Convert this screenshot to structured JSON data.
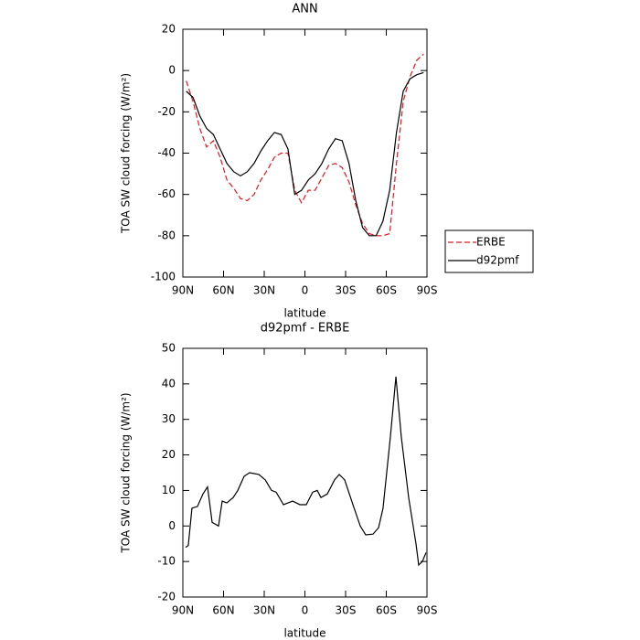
{
  "chart_data": [
    {
      "type": "line",
      "title": "ANN",
      "x_label": "latitude",
      "y_label": "TOA SW cloud forcing (W/m²)",
      "x": [
        87.5,
        82.5,
        77.5,
        72.5,
        67.5,
        62.5,
        57.5,
        52.5,
        47.5,
        42.5,
        37.5,
        32.5,
        27.5,
        22.5,
        17.5,
        12.5,
        7.5,
        2.5,
        -2.5,
        -7.5,
        -12.5,
        -17.5,
        -22.5,
        -27.5,
        -32.5,
        -37.5,
        -42.5,
        -47.5,
        -52.5,
        -57.5,
        -62.5,
        -67.5,
        -72.5,
        -77.5,
        -82.5,
        -87.5
      ],
      "series": [
        {
          "name": "ERBE",
          "color": "#e8141e",
          "line_style": "dashed",
          "values": [
            -5,
            -15,
            -28,
            -37,
            -34,
            -42,
            -53,
            -57,
            -62,
            -63,
            -60,
            -53,
            -48,
            -42,
            -40,
            -40,
            -58,
            -64,
            -58,
            -58,
            -52,
            -46,
            -45,
            -47,
            -54,
            -65,
            -74,
            -79,
            -80,
            -80,
            -79,
            -45,
            -15,
            -3,
            5,
            8
          ]
        },
        {
          "name": "d92pmf",
          "color": "#000000",
          "line_style": "solid",
          "values": [
            -10,
            -13,
            -22,
            -28,
            -31,
            -38,
            -45,
            -49,
            -51,
            -49,
            -45,
            -39,
            -34,
            -30,
            -31,
            -38,
            -60,
            -58,
            -53,
            -50,
            -45,
            -38,
            -33,
            -34,
            -45,
            -63,
            -76,
            -80,
            -80,
            -73,
            -58,
            -30,
            -10,
            -4,
            -2,
            -1
          ]
        }
      ],
      "xlim": [
        90,
        -90
      ],
      "xticks": [
        {
          "value": 90,
          "label": "90N"
        },
        {
          "value": 60,
          "label": "60N"
        },
        {
          "value": 30,
          "label": "30N"
        },
        0,
        {
          "value": -30,
          "label": "30S"
        },
        {
          "value": -60,
          "label": "60S"
        },
        {
          "value": -90,
          "label": "90S"
        }
      ],
      "ylim": [
        -100,
        20
      ],
      "yticks": [
        -100,
        -80,
        -60,
        -40,
        -20,
        0,
        20
      ],
      "legend": "right"
    },
    {
      "type": "line",
      "title": "d92pmf - ERBE",
      "x_label": "latitude",
      "y_label": "TOA SW cloud forcing (W/m²)",
      "x": [
        88,
        86,
        83.3,
        79.2,
        75.2,
        71.8,
        68.4,
        63.7,
        61,
        57.6,
        52.9,
        49.5,
        44.8,
        40.8,
        34,
        29.3,
        24.6,
        21.2,
        15.8,
        12.5,
        9.1,
        3.7,
        -1,
        -5.7,
        -9.1,
        -11.8,
        -16.5,
        -21.9,
        -25.3,
        -29.3,
        -35.4,
        -40.8,
        -44.8,
        -50.2,
        -54.3,
        -57.6,
        -63,
        -67.1,
        -71.1,
        -76.5,
        -81.9,
        -83.9,
        -86.6,
        -89.3
      ],
      "series": [
        {
          "color": "#000000",
          "line_style": "solid",
          "values": [
            -6,
            -5.5,
            5,
            5.5,
            9,
            11,
            1,
            0,
            7,
            6.5,
            8,
            10,
            14,
            15,
            14.5,
            13,
            10,
            9.5,
            6,
            6.5,
            7,
            6,
            6,
            9.5,
            10,
            8,
            9,
            13,
            14.5,
            13,
            6,
            0,
            -2.5,
            -2.3,
            -0.5,
            5,
            25,
            42,
            25,
            8,
            -5,
            -11,
            -10,
            -7.5
          ]
        }
      ],
      "xlim": [
        90,
        -90
      ],
      "xticks": [
        {
          "value": 90,
          "label": "90N"
        },
        {
          "value": 60,
          "label": "60N"
        },
        {
          "value": 30,
          "label": "30N"
        },
        0,
        {
          "value": -30,
          "label": "30S"
        },
        {
          "value": -60,
          "label": "60S"
        },
        {
          "value": -90,
          "label": "90S"
        }
      ],
      "ylim": [
        -20,
        50
      ],
      "yticks": [
        -20,
        -10,
        0,
        10,
        20,
        30,
        40,
        50
      ]
    }
  ]
}
